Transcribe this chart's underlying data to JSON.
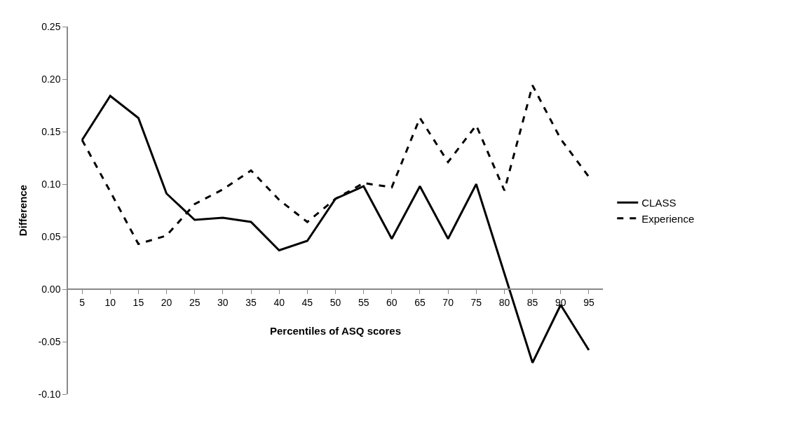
{
  "chart_data": {
    "type": "line",
    "xlabel": "Percentiles of ASQ scores",
    "ylabel": "Difference",
    "categories": [
      "5",
      "10",
      "15",
      "20",
      "25",
      "30",
      "35",
      "40",
      "45",
      "50",
      "55",
      "60",
      "65",
      "70",
      "75",
      "80",
      "85",
      "90",
      "95"
    ],
    "series": [
      {
        "name": "CLASS",
        "color": "#000000",
        "line_style": "solid",
        "values": [
          0.142,
          0.184,
          0.163,
          0.091,
          0.066,
          0.068,
          0.064,
          0.037,
          0.046,
          0.086,
          0.098,
          0.048,
          0.098,
          0.048,
          0.1,
          0.015,
          -0.07,
          -0.015,
          -0.058
        ]
      },
      {
        "name": "Experience",
        "color": "#000000",
        "line_style": "dashed",
        "values": [
          0.142,
          0.093,
          0.043,
          0.051,
          0.081,
          0.095,
          0.113,
          0.085,
          0.064,
          0.086,
          0.101,
          0.097,
          0.163,
          0.121,
          0.156,
          0.094,
          0.194,
          0.143,
          0.107
        ]
      }
    ],
    "ylim": [
      -0.1,
      0.25
    ],
    "yticks": [
      {
        "value": -0.1,
        "label": "-0.10"
      },
      {
        "value": -0.05,
        "label": "-0.05"
      },
      {
        "value": 0,
        "label": "0.00"
      },
      {
        "value": 0.05,
        "label": "0.05"
      },
      {
        "value": 0.1,
        "label": "0.10"
      },
      {
        "value": 0.15,
        "label": "0.15"
      },
      {
        "value": 0.2,
        "label": "0.20"
      },
      {
        "value": 0.25,
        "label": "0.25"
      }
    ],
    "grid": false,
    "legend": "right",
    "marker": "none"
  }
}
